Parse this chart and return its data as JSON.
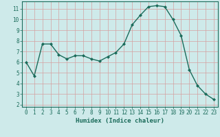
{
  "x": [
    0,
    1,
    2,
    3,
    4,
    5,
    6,
    7,
    8,
    9,
    10,
    11,
    12,
    13,
    14,
    15,
    16,
    17,
    18,
    19,
    20,
    21,
    22,
    23
  ],
  "y": [
    6.0,
    4.7,
    7.7,
    7.7,
    6.7,
    6.3,
    6.6,
    6.6,
    6.3,
    6.1,
    6.5,
    6.9,
    7.7,
    9.5,
    10.4,
    11.2,
    11.3,
    11.2,
    10.0,
    8.5,
    5.3,
    3.8,
    3.0,
    2.5
  ],
  "line_color": "#1a6b5a",
  "marker": "D",
  "markersize": 2.0,
  "linewidth": 1.0,
  "bg_color": "#ceeaea",
  "grid_color": "#b8d4d4",
  "xlabel": "Humidex (Indice chaleur)",
  "xlabel_color": "#1a6b5a",
  "xlim": [
    -0.5,
    23.5
  ],
  "ylim": [
    1.8,
    11.7
  ],
  "yticks": [
    2,
    3,
    4,
    5,
    6,
    7,
    8,
    9,
    10,
    11
  ],
  "xticks": [
    0,
    1,
    2,
    3,
    4,
    5,
    6,
    7,
    8,
    9,
    10,
    11,
    12,
    13,
    14,
    15,
    16,
    17,
    18,
    19,
    20,
    21,
    22,
    23
  ],
  "tick_fontsize": 5.5,
  "xlabel_fontsize": 6.5
}
